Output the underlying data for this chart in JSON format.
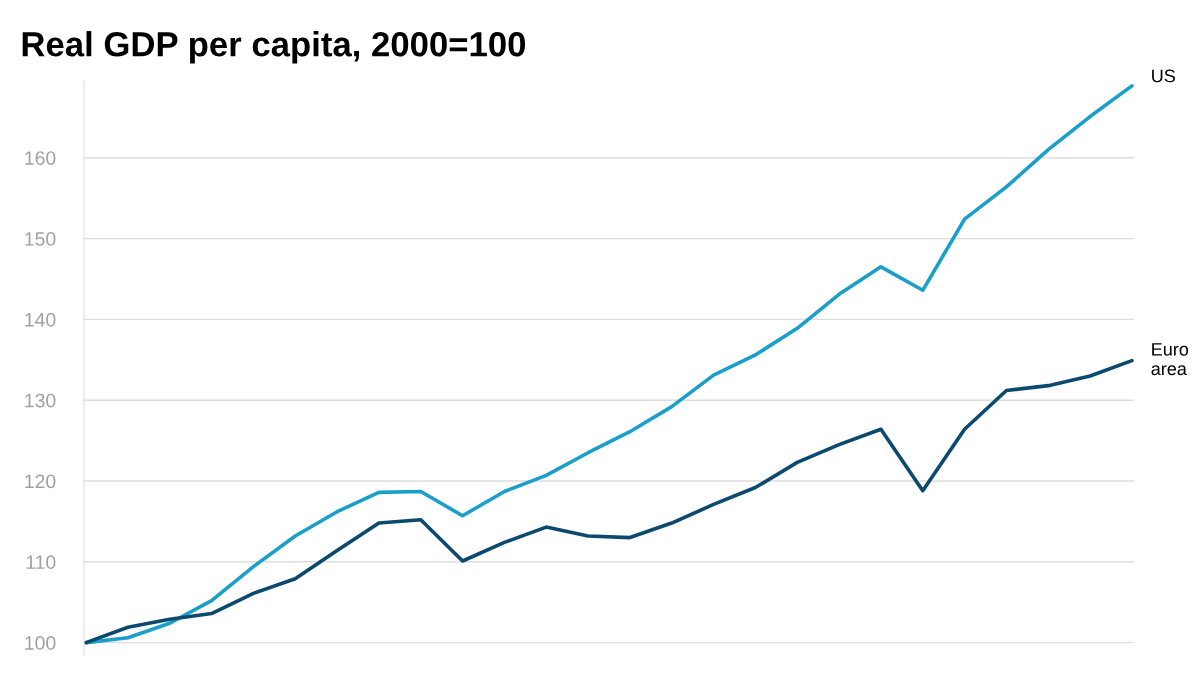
{
  "chart_data": {
    "type": "line",
    "title": "Real GDP per capita, 2000=100",
    "categories": [
      null,
      null,
      null,
      null,
      null,
      null,
      null,
      null,
      null,
      null,
      null,
      null,
      null,
      null,
      null,
      null,
      null,
      null,
      null,
      null,
      null,
      null,
      null,
      null,
      null,
      null
    ],
    "series": [
      {
        "name": "US",
        "color": "#1a9fcb",
        "values": [
          100,
          100.6,
          102.4,
          105.2,
          109.4,
          113.2,
          116.2,
          118.6,
          118.7,
          115.7,
          118.7,
          120.7,
          123.5,
          126.1,
          129.2,
          133.1,
          135.6,
          138.9,
          143.1,
          146.5,
          143.6,
          152.4,
          156.4,
          161,
          165.1,
          168.9
        ]
      },
      {
        "name": "Euro area",
        "color": "#0b4a6e",
        "values": [
          100,
          101.9,
          102.9,
          103.6,
          106.1,
          107.9,
          111.4,
          114.8,
          115.2,
          110.1,
          112.4,
          114.3,
          113.2,
          113,
          114.8,
          117.1,
          119.2,
          122.3,
          124.5,
          126.4,
          118.8,
          126.4,
          131.2,
          131.8,
          133,
          134.9
        ]
      }
    ],
    "ylim": [
      98.5,
      169.5
    ],
    "yticks": [
      100,
      110,
      120,
      130,
      140,
      150,
      160
    ],
    "grid": "y",
    "legend": false,
    "tick_labels": "y"
  }
}
